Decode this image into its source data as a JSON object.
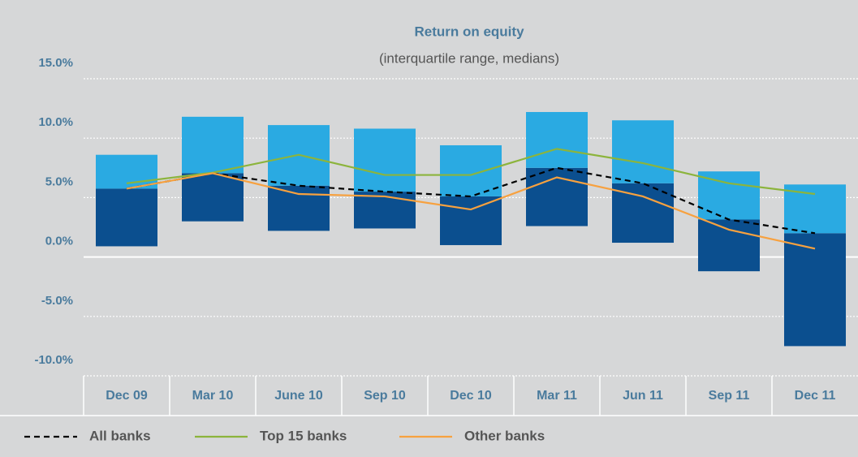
{
  "chart_data": {
    "type": "range-line",
    "title": "Return on equity",
    "subtitle": "(interquartile range, medians)",
    "categories": [
      "Dec 09",
      "Mar 10",
      "June 10",
      "Sep 10",
      "Dec 10",
      "Mar 11",
      "Jun 11",
      "Sep 11",
      "Dec 11"
    ],
    "boxes": {
      "low": [
        0.9,
        3.0,
        2.2,
        2.4,
        1.0,
        2.6,
        1.2,
        -1.2,
        -7.5
      ],
      "high": [
        8.6,
        11.8,
        11.1,
        10.8,
        9.4,
        12.2,
        11.5,
        7.2,
        6.1
      ],
      "lower_color": "#0b4f8f",
      "upper_color": "#2aaae2"
    },
    "series": [
      {
        "name": "All banks",
        "color": "#000000",
        "dash": true,
        "values": [
          5.75,
          7.05,
          6.0,
          5.5,
          5.1,
          7.5,
          6.2,
          3.15,
          2.0
        ]
      },
      {
        "name": "Top 15 banks",
        "color": "#8cb43c",
        "dash": false,
        "values": [
          6.2,
          7.1,
          8.6,
          6.9,
          6.9,
          9.1,
          7.9,
          6.2,
          5.3
        ]
      },
      {
        "name": "Other banks",
        "color": "#f7a13f",
        "dash": false,
        "values": [
          5.75,
          7.05,
          5.3,
          5.1,
          4.0,
          6.7,
          5.1,
          2.3,
          0.7
        ]
      }
    ],
    "ylim": [
      -10,
      15
    ],
    "yticks": [
      {
        "value": -10,
        "label": "-10.0%"
      },
      {
        "value": -5,
        "label": "-5.0%"
      },
      {
        "value": 0,
        "label": "0.0%"
      },
      {
        "value": 5,
        "label": "5.0%"
      },
      {
        "value": 10,
        "label": "10.0%"
      },
      {
        "value": 15,
        "label": "15.0%"
      }
    ],
    "grid": true
  }
}
